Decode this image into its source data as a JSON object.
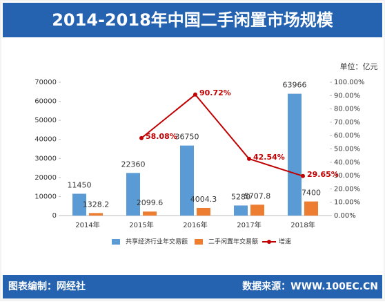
{
  "chart_data": {
    "type": "bar",
    "title": "2014-2018年中国二手闲置市场规模",
    "unit": "单位：亿元",
    "categories": [
      "2014年",
      "2015年",
      "2016年",
      "2017年",
      "2018年"
    ],
    "series": [
      {
        "name": "共享经济行业年交易额",
        "type": "bar",
        "color": "#5b9bd5",
        "values": [
          11450,
          22360,
          36750,
          5280,
          63966
        ]
      },
      {
        "name": "二手闲置年交易额",
        "type": "bar",
        "color": "#ed7d31",
        "values": [
          1328.2,
          2099.6,
          4004.3,
          5707.8,
          7400
        ]
      },
      {
        "name": "增速",
        "type": "line",
        "axis": "y2",
        "color": "#c00000",
        "values": [
          null,
          58.08,
          90.72,
          42.54,
          29.65
        ],
        "value_labels": [
          null,
          "58.08%",
          "90.72%",
          "42.54%",
          "29.65%"
        ]
      }
    ],
    "ylim": [
      0,
      70000
    ],
    "yticks": [
      0,
      10000,
      20000,
      30000,
      40000,
      50000,
      60000,
      70000
    ],
    "y2lim": [
      0,
      100
    ],
    "y2ticks": [
      {
        "value": 0,
        "label": "0.00%"
      },
      {
        "value": 10,
        "label": "10.00%"
      },
      {
        "value": 20,
        "label": "20.00%"
      },
      {
        "value": 30,
        "label": "30.00%"
      },
      {
        "value": 40,
        "label": "40.00%"
      },
      {
        "value": 50,
        "label": "50.00%"
      },
      {
        "value": 60,
        "label": "60.00%"
      },
      {
        "value": 70,
        "label": "70.00%"
      },
      {
        "value": 80,
        "label": "80.00%"
      },
      {
        "value": 90,
        "label": "90.00%"
      },
      {
        "value": 100,
        "label": "100.00%"
      }
    ],
    "legend": "bottom"
  },
  "footer": {
    "left": "图表编制：网经社",
    "right": "数据来源：WWW.100EC.CN"
  }
}
